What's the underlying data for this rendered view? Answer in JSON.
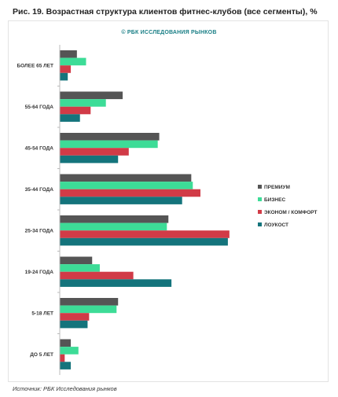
{
  "title": "Рис. 19. Возрастная структура клиентов фитнес-клубов (все сегменты), %",
  "copyright": "© РБК ИССЛЕДОВАНИЯ РЫНКОВ",
  "source": "Источник: РБК Исследования рынков",
  "colors": {
    "premium": "#555555",
    "business": "#3ddc97",
    "economy": "#d13b47",
    "lowcost": "#14747c"
  },
  "chart_data": {
    "type": "bar",
    "orientation": "horizontal",
    "categories": [
      "БОЛЕЕ 65 ЛЕТ",
      "55-64 ГОДА",
      "45-54 ГОДА",
      "35-44 ГОДА",
      "25-34 ГОДА",
      "19-24 ГОДА",
      "5-18 ЛЕТ",
      "ДО 5 ЛЕТ"
    ],
    "series": [
      {
        "name": "ПРЕМИУМ",
        "color": "#555555",
        "values": [
          1.1,
          4.1,
          6.5,
          8.6,
          7.1,
          2.1,
          3.8,
          0.7
        ]
      },
      {
        "name": "БИЗНЕС",
        "color": "#3ddc97",
        "values": [
          1.7,
          3.0,
          6.4,
          8.7,
          7.0,
          2.6,
          3.7,
          1.2
        ]
      },
      {
        "name": "ЭКОНОМ / КОМФОРТ",
        "color": "#d13b47",
        "values": [
          0.7,
          2.0,
          4.5,
          9.2,
          11.1,
          4.8,
          1.9,
          0.3
        ]
      },
      {
        "name": "ЛОУКОСТ",
        "color": "#14747c",
        "values": [
          0.5,
          1.3,
          3.8,
          8.0,
          11.0,
          7.3,
          1.8,
          0.7
        ]
      }
    ],
    "legend_position": "right",
    "grid": false
  }
}
